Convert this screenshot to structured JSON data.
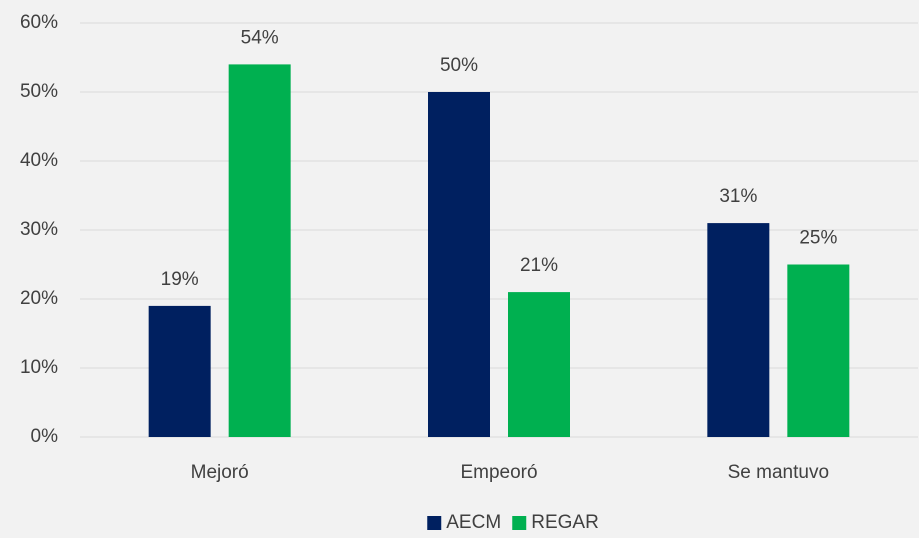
{
  "chart_data": {
    "type": "bar",
    "categories": [
      "Mejoró",
      "Empeoró",
      "Se mantuvo"
    ],
    "series": [
      {
        "name": "AECM",
        "color": "#002060",
        "values": [
          19,
          50,
          31
        ],
        "value_labels": [
          "19%",
          "50%",
          "31%"
        ]
      },
      {
        "name": "REGAR",
        "color": "#00b050",
        "values": [
          54,
          21,
          25
        ],
        "value_labels": [
          "54%",
          "21%",
          "25%"
        ]
      }
    ],
    "ylim": [
      0,
      60
    ],
    "yticks": [
      {
        "value": 0,
        "label": "0%"
      },
      {
        "value": 10,
        "label": "10%"
      },
      {
        "value": 20,
        "label": "20%"
      },
      {
        "value": 30,
        "label": "30%"
      },
      {
        "value": 40,
        "label": "40%"
      },
      {
        "value": 50,
        "label": "50%"
      },
      {
        "value": 60,
        "label": "60%"
      }
    ],
    "grid": true,
    "legend": "bottom"
  }
}
